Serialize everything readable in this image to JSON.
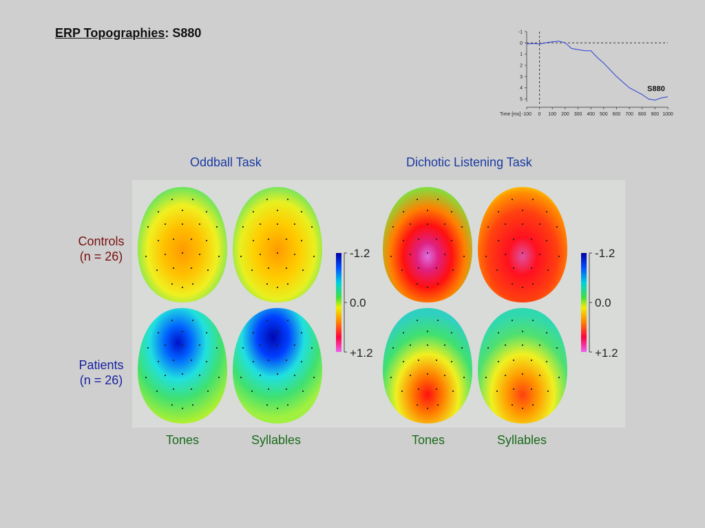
{
  "title": {
    "underlined": "ERP Topographies",
    "rest": ":  S880"
  },
  "waveform": {
    "series_label": "S880",
    "axis_unit_label": "Time [ms]",
    "x_ticks": [
      "-100",
      "0",
      "100",
      "200",
      "300",
      "400",
      "500",
      "600",
      "700",
      "800",
      "900",
      "1000"
    ],
    "y_ticks": [
      "-1",
      "0",
      "1",
      "2",
      "3",
      "4",
      "5"
    ],
    "line_color": "#2b3cd6"
  },
  "tasks": {
    "oddball": "Oddball Task",
    "dichotic": "Dichotic Listening Task"
  },
  "groups": {
    "controls_name": "Controls",
    "controls_n": "(n = 26)",
    "patients_name": "Patients",
    "patients_n": "(n = 26)"
  },
  "columns": {
    "tones": "Tones",
    "syllables": "Syllables"
  },
  "scale": {
    "top": "-1.2",
    "mid": "0.0",
    "bottom": "+1.2"
  },
  "chart_data": {
    "type": "line",
    "x": [
      -100,
      -50,
      0,
      50,
      100,
      150,
      200,
      250,
      300,
      350,
      400,
      450,
      500,
      550,
      600,
      650,
      700,
      750,
      800,
      850,
      900,
      950,
      1000
    ],
    "series": [
      {
        "name": "S880",
        "values": [
          0.1,
          0.05,
          0.1,
          0.0,
          -0.1,
          -0.15,
          0.0,
          0.5,
          0.6,
          0.7,
          0.7,
          1.3,
          1.8,
          2.4,
          3.0,
          3.5,
          4.0,
          4.3,
          4.6,
          5.0,
          5.1,
          4.9,
          4.8
        ]
      }
    ],
    "xlabel": "Time [ms]",
    "ylabel": "",
    "xlim": [
      -100,
      1000
    ],
    "ylim": [
      -1,
      5
    ],
    "y_inverted": true
  }
}
